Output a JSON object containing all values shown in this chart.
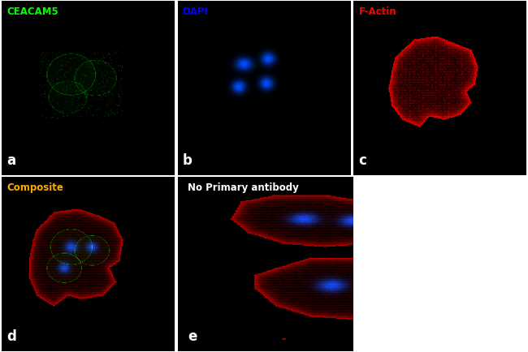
{
  "figure_bg": "#ffffff",
  "panel_bg": "#000000",
  "figsize": [
    6.5,
    4.34
  ],
  "dpi": 100,
  "panels": [
    {
      "id": "a",
      "label": "a",
      "title": "CEACAM5",
      "title_color": "#00ff00"
    },
    {
      "id": "b",
      "label": "b",
      "title": "DAPI",
      "title_color": "#0000ff"
    },
    {
      "id": "c",
      "label": "c",
      "title": "F-Actin",
      "title_color": "#ff0000"
    },
    {
      "id": "d",
      "label": "d",
      "title": "Composite",
      "title_color": "#ffaa00"
    },
    {
      "id": "e",
      "label": "e",
      "title": "No Primary antibody",
      "title_color": "#ffffff"
    }
  ],
  "label_color": "#ffffff",
  "label_fontsize": 12,
  "title_fontsize": 8.5
}
